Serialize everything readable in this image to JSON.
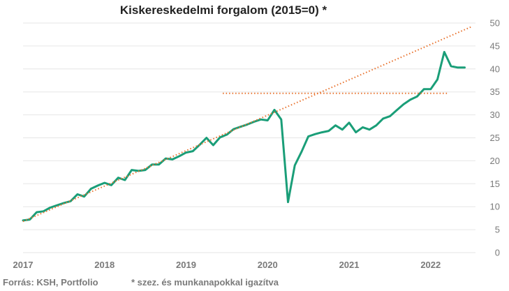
{
  "chart_data": {
    "type": "line",
    "title": "Kiskereskedelmi forgalom (2015=0) *",
    "xlabel": "",
    "ylabel": "",
    "xlim": [
      2017.0,
      2022.55
    ],
    "ylim": [
      0,
      50
    ],
    "y_ticks": [
      "0",
      "5",
      "10",
      "15",
      "20",
      "25",
      "30",
      "35",
      "40",
      "45",
      "50"
    ],
    "x_ticks": [
      {
        "label": "2017",
        "value": 2017.0
      },
      {
        "label": "2018",
        "value": 2018.0
      },
      {
        "label": "2019",
        "value": 2019.0
      },
      {
        "label": "2020",
        "value": 2020.0
      },
      {
        "label": "2021",
        "value": 2021.0
      },
      {
        "label": "2022",
        "value": 2022.0
      }
    ],
    "grid": "horizontal",
    "legend": "none",
    "series": [
      {
        "role": "actual",
        "color": "#1a9e78",
        "style": "solid",
        "x": [
          2017.0,
          2017.083,
          2017.167,
          2017.25,
          2017.333,
          2017.417,
          2017.5,
          2017.583,
          2017.667,
          2017.75,
          2017.833,
          2017.917,
          2018.0,
          2018.083,
          2018.167,
          2018.25,
          2018.333,
          2018.417,
          2018.5,
          2018.583,
          2018.667,
          2018.75,
          2018.833,
          2018.917,
          2019.0,
          2019.083,
          2019.167,
          2019.25,
          2019.333,
          2019.417,
          2019.5,
          2019.583,
          2019.667,
          2019.75,
          2019.833,
          2019.917,
          2020.0,
          2020.083,
          2020.167,
          2020.25,
          2020.333,
          2020.417,
          2020.5,
          2020.583,
          2020.667,
          2020.75,
          2020.833,
          2020.917,
          2021.0,
          2021.083,
          2021.167,
          2021.25,
          2021.333,
          2021.417,
          2021.5,
          2021.583,
          2021.667,
          2021.75,
          2021.833,
          2021.917,
          2022.0,
          2022.083,
          2022.167,
          2022.25,
          2022.333,
          2022.417
        ],
        "values": [
          7.0,
          7.2,
          8.8,
          9.0,
          9.8,
          10.3,
          10.8,
          11.2,
          12.7,
          12.2,
          13.9,
          14.6,
          15.2,
          14.7,
          16.3,
          15.8,
          18.0,
          17.8,
          18.0,
          19.2,
          19.2,
          20.5,
          20.3,
          21.0,
          21.8,
          22.1,
          23.5,
          25.0,
          23.4,
          25.1,
          25.7,
          26.9,
          27.4,
          27.9,
          28.5,
          29.0,
          28.8,
          31.1,
          29.0,
          11.0,
          19.0,
          22.0,
          25.3,
          25.8,
          26.2,
          26.5,
          27.7,
          26.8,
          28.3,
          26.2,
          27.3,
          26.8,
          27.7,
          29.2,
          29.7,
          31.0,
          32.3,
          33.3,
          34.0,
          35.6,
          35.6,
          37.7,
          43.7,
          40.6,
          40.3,
          40.3
        ]
      },
      {
        "role": "trend",
        "color": "#e8702a",
        "style": "dotted",
        "x": [
          2017.0,
          2022.5
        ],
        "values": [
          6.8,
          49.2
        ]
      },
      {
        "role": "level",
        "color": "#e8702a",
        "style": "dotted",
        "x": [
          2019.45,
          2022.2
        ],
        "values": [
          34.7,
          34.7
        ]
      }
    ]
  },
  "footer": {
    "source": "Forrás: KSH, Portfolio",
    "note": "* szez. és munkanapokkal igazítva"
  }
}
